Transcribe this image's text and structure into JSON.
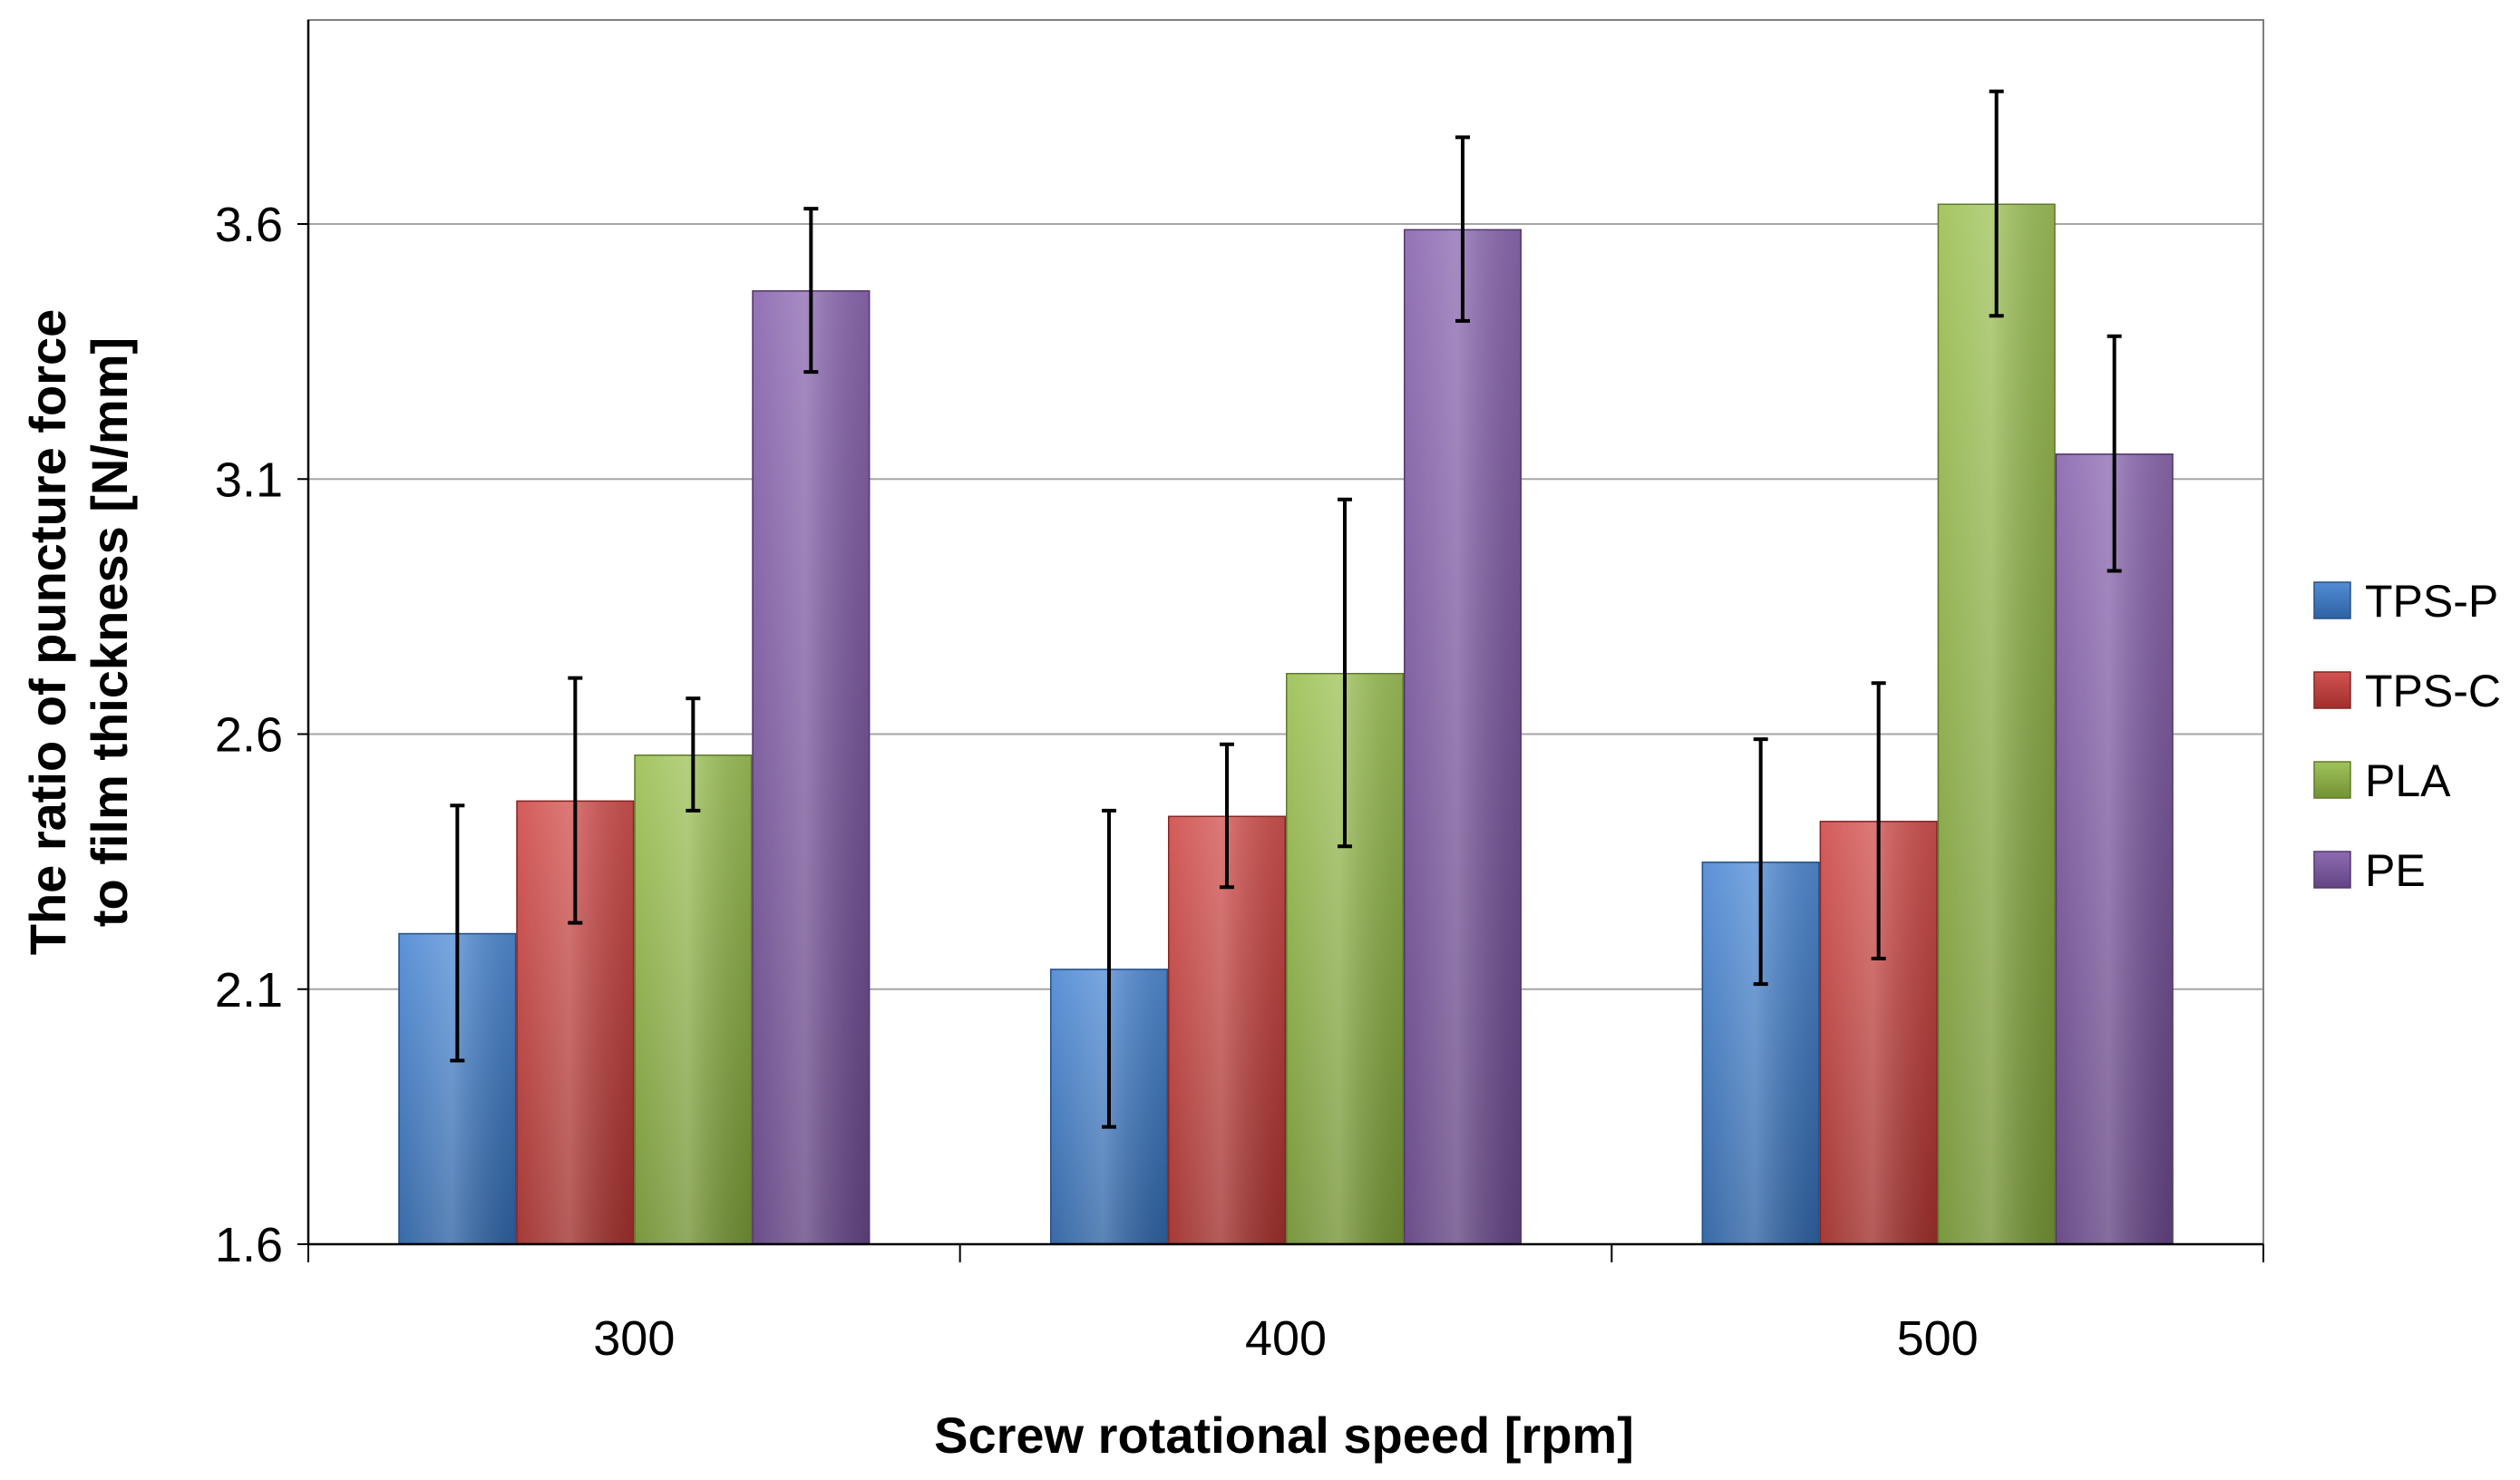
{
  "chart_data": {
    "type": "bar",
    "title": "",
    "xlabel": "Screw rotational speed [rpm]",
    "ylabel_lines": [
      "The ratio of puncture force",
      "to film thickness [N/mm]"
    ],
    "categories": [
      "300",
      "400",
      "500"
    ],
    "ylim": [
      1.6,
      4.0
    ],
    "yticks": [
      "1.6",
      "2.1",
      "2.6",
      "3.1",
      "3.6"
    ],
    "ytick_values": [
      1.6,
      2.1,
      2.6,
      3.1,
      3.6
    ],
    "grid": true,
    "legend_position": "right",
    "series": [
      {
        "name": "TPS-P",
        "color": "#3b7dd0",
        "values": [
          2.21,
          2.14,
          2.35
        ],
        "errors": [
          0.25,
          0.31,
          0.24
        ]
      },
      {
        "name": "TPS-C",
        "color": "#cc3c39",
        "values": [
          2.47,
          2.44,
          2.43
        ],
        "errors": [
          0.24,
          0.14,
          0.27
        ]
      },
      {
        "name": "PLA",
        "color": "#93bb43",
        "values": [
          2.56,
          2.72,
          3.64
        ],
        "errors": [
          0.11,
          0.34,
          0.22
        ]
      },
      {
        "name": "PE",
        "color": "#7f57a8",
        "values": [
          3.47,
          3.59,
          3.15
        ],
        "errors": [
          0.16,
          0.18,
          0.23
        ]
      }
    ]
  }
}
